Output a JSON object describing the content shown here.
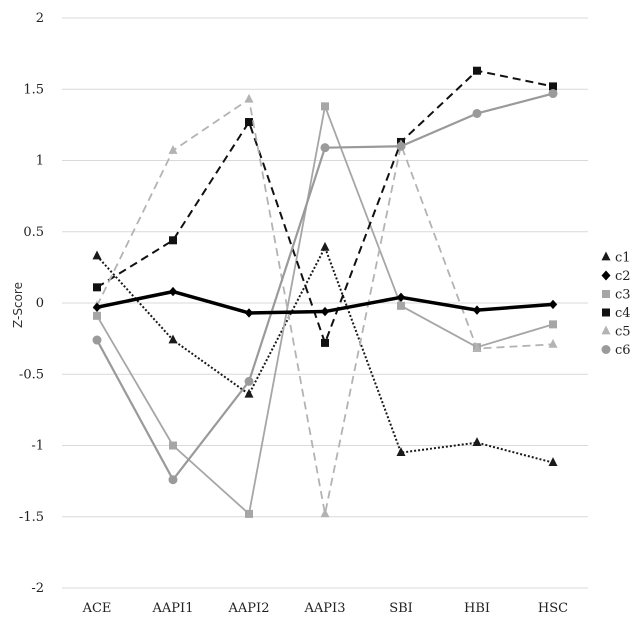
{
  "chart_data": {
    "type": "line",
    "title": "",
    "xlabel": "",
    "ylabel": "Z-Score",
    "categories": [
      "ACE",
      "AAPI1",
      "AAPI2",
      "AAPI3",
      "SBI",
      "HBI",
      "HSC"
    ],
    "ylim": [
      -2,
      2
    ],
    "yticks": [
      2,
      1.5,
      1,
      0.5,
      0,
      -0.5,
      -1,
      -1.5,
      -2
    ],
    "ytick_labels": [
      "2",
      "1.5",
      "1",
      "0.5",
      "0",
      "-0.5",
      "-1",
      "-1.5",
      "-2"
    ],
    "grid": true,
    "legend_position": "right",
    "series": [
      {
        "name": "c1",
        "values": [
          0.33,
          -0.26,
          -0.64,
          0.39,
          -1.05,
          -0.98,
          -1.12
        ],
        "color": "#1a1a1a",
        "dash": "dotted",
        "width": 2,
        "marker": "triangle"
      },
      {
        "name": "c2",
        "values": [
          -0.03,
          0.08,
          -0.07,
          -0.06,
          0.04,
          -0.05,
          -0.01
        ],
        "color": "#000000",
        "dash": "solid",
        "width": 3.5,
        "marker": "diamond"
      },
      {
        "name": "c3",
        "values": [
          -0.09,
          -1.0,
          -1.48,
          1.38,
          -0.02,
          -0.31,
          -0.15
        ],
        "color": "#a6a6a6",
        "dash": "solid",
        "width": 1.8,
        "marker": "square"
      },
      {
        "name": "c4",
        "values": [
          0.11,
          0.44,
          1.27,
          -0.28,
          1.13,
          1.63,
          1.52
        ],
        "color": "#111111",
        "dash": "dashed",
        "width": 2,
        "marker": "square"
      },
      {
        "name": "c5",
        "values": [
          -0.02,
          1.07,
          1.43,
          -1.48,
          1.11,
          -0.32,
          -0.29
        ],
        "color": "#b3b3b3",
        "dash": "dashed",
        "width": 1.8,
        "marker": "triangle"
      },
      {
        "name": "c6",
        "values": [
          -0.26,
          -1.24,
          -0.55,
          1.09,
          1.1,
          1.33,
          1.47
        ],
        "color": "#9a9a9a",
        "dash": "solid",
        "width": 2.2,
        "marker": "circle"
      }
    ]
  }
}
